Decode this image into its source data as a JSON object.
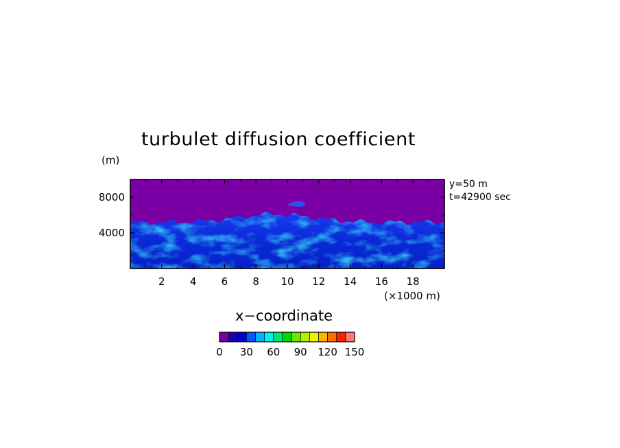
{
  "chart_data": {
    "type": "heatmap",
    "title": "turbulet diffusion coefficient",
    "xlabel": "x−coordinate",
    "x_unit_label": "(×1000 m)",
    "y_unit_label": "(m)",
    "xlim": [
      0,
      20
    ],
    "ylim": [
      0,
      10000
    ],
    "x_ticks": [
      "2",
      "4",
      "6",
      "8",
      "10",
      "12",
      "14",
      "16",
      "18"
    ],
    "y_ticks": [
      "4000",
      "8000"
    ],
    "annotations": [
      "y=50 m",
      "t=42900 sec"
    ],
    "field_description_values": {
      "upper_layer_value": 0,
      "boundary_layer_top_m": 5200,
      "dome_top_m": 6100,
      "typical_values_range": [
        10,
        40
      ]
    },
    "colorbar": {
      "min": 0,
      "max": 150,
      "step": 10,
      "tick_labels": [
        "0",
        "30",
        "60",
        "90",
        "120",
        "150"
      ],
      "colors": [
        "#7400a8",
        "#1c00a8",
        "#0000dc",
        "#0058ff",
        "#00b4ff",
        "#00f0f0",
        "#00e67a",
        "#00dc00",
        "#6ee600",
        "#b4f000",
        "#f0f000",
        "#ffb400",
        "#ff6e00",
        "#ff1e00",
        "#ff7878"
      ]
    }
  },
  "colors": {
    "background": "#ffffff",
    "upper_layer": "#7a00a6",
    "boundary_layer_base": "#0a2ce0"
  }
}
